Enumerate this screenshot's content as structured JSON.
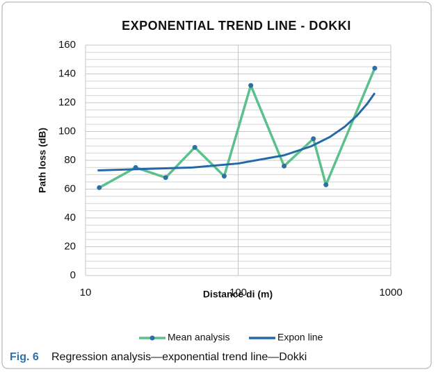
{
  "chart_data": {
    "type": "line",
    "title": "EXPONENTIAL TREND LINE - DOKKI",
    "xlabel": "Distance di (m)",
    "ylabel": "Path loss (dB)",
    "xscale": "log",
    "xlim": [
      10,
      1000
    ],
    "xticks": [
      10,
      100,
      1000
    ],
    "ylim": [
      0,
      160
    ],
    "yticks": [
      0,
      20,
      40,
      60,
      80,
      100,
      120,
      140,
      160
    ],
    "yminorticks": [
      5,
      10,
      15,
      25,
      30,
      35,
      45,
      50,
      55,
      65,
      70,
      75,
      85,
      90,
      95,
      105,
      110,
      115,
      125,
      130,
      135,
      145,
      150,
      155
    ],
    "grid": true,
    "legend": "bottom",
    "series": [
      {
        "name": "Mean analysis",
        "color": "#5cc08c",
        "marker_color": "#2e6fa8",
        "x": [
          12.3,
          21.3,
          33.5,
          52,
          81,
          121,
          200,
          311,
          376,
          785
        ],
        "values": [
          61,
          75,
          68,
          89,
          69,
          132,
          76,
          95,
          63,
          144
        ]
      },
      {
        "name": "Expon line",
        "color": "#2369a8",
        "x": [
          12,
          50,
          100,
          200,
          300,
          400,
          500,
          600,
          700,
          785
        ],
        "values": [
          73.0,
          75.0,
          77.8,
          83.5,
          89.7,
          96.3,
          103.4,
          111.0,
          119.2,
          126.7
        ]
      }
    ]
  },
  "caption": {
    "label": "Fig. 6",
    "text": "Regression analysis—exponential trend line—Dokki"
  }
}
